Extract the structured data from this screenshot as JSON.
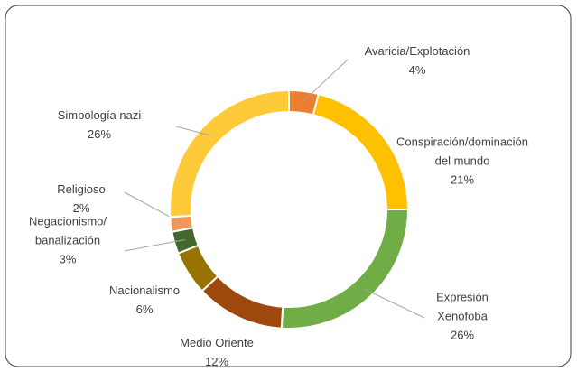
{
  "chart_data": {
    "type": "donut",
    "categories": [
      "Avaricia/Explotación",
      "Conspiración/dominación del mundo",
      "Expresión Xenófoba",
      "Medio Oriente",
      "Nacionalismo",
      "Negacionismo/ banalización",
      "Religioso",
      "Simbología nazi"
    ],
    "values": [
      4,
      21,
      26,
      12,
      6,
      3,
      2,
      26
    ],
    "value_labels": [
      "4%",
      "21%",
      "26%",
      "12%",
      "6%",
      "3%",
      "2%",
      "26%"
    ],
    "colors": [
      "#ed7d31",
      "#ffc000",
      "#70ad47",
      "#9e480e",
      "#997300",
      "#43682b",
      "#f1975a",
      "#ffca3a"
    ]
  }
}
